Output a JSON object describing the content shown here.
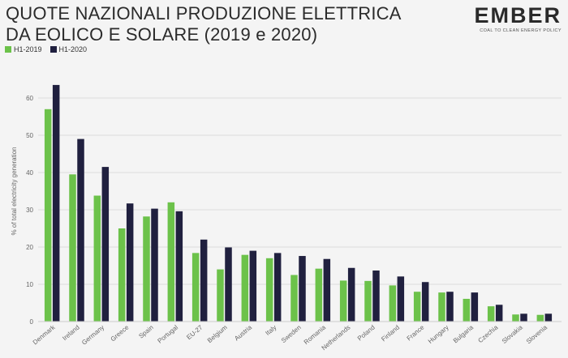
{
  "title_line1": "QUOTE NAZIONALI PRODUZIONE ELETTRICA",
  "title_line2": "DA EOLICO E SOLARE (2019 e 2020)",
  "logo": {
    "word": "EMBER",
    "tagline": "COAL TO CLEAN ENERGY POLICY"
  },
  "colors": {
    "h1_2019": "#6cc24a",
    "h1_2020": "#20203f",
    "grid": "#dddddd",
    "text": "#666666"
  },
  "chart_data": {
    "type": "bar",
    "ylabel": "% of total electricity generation",
    "ylim": [
      0,
      70
    ],
    "yticks": [
      0,
      10,
      20,
      30,
      40,
      50,
      60
    ],
    "grid": true,
    "legend_position": "top-left",
    "categories": [
      "Denmark",
      "Ireland",
      "Germany",
      "Greece",
      "Spain",
      "Portugal",
      "EU-27",
      "Belgium",
      "Austria",
      "Italy",
      "Sweden",
      "Romania",
      "Netherlands",
      "Poland",
      "Finland",
      "France",
      "Hungary",
      "Bulgaria",
      "Czechia",
      "Slovakia",
      "Slovenia"
    ],
    "series": [
      {
        "name": "H1-2019",
        "values": [
          57,
          39.5,
          33.8,
          25,
          28.2,
          32,
          18.4,
          14,
          17.9,
          17,
          12.5,
          14.2,
          11,
          10.9,
          9.7,
          8,
          7.8,
          6.1,
          4.1,
          1.9,
          1.8
        ]
      },
      {
        "name": "H1-2020",
        "values": [
          63.5,
          49,
          41.5,
          31.7,
          30.3,
          29.6,
          22,
          19.9,
          19,
          18.4,
          17.6,
          16.8,
          14.4,
          13.7,
          12.1,
          10.6,
          8,
          7.8,
          4.5,
          2.1,
          2.1
        ]
      }
    ]
  }
}
